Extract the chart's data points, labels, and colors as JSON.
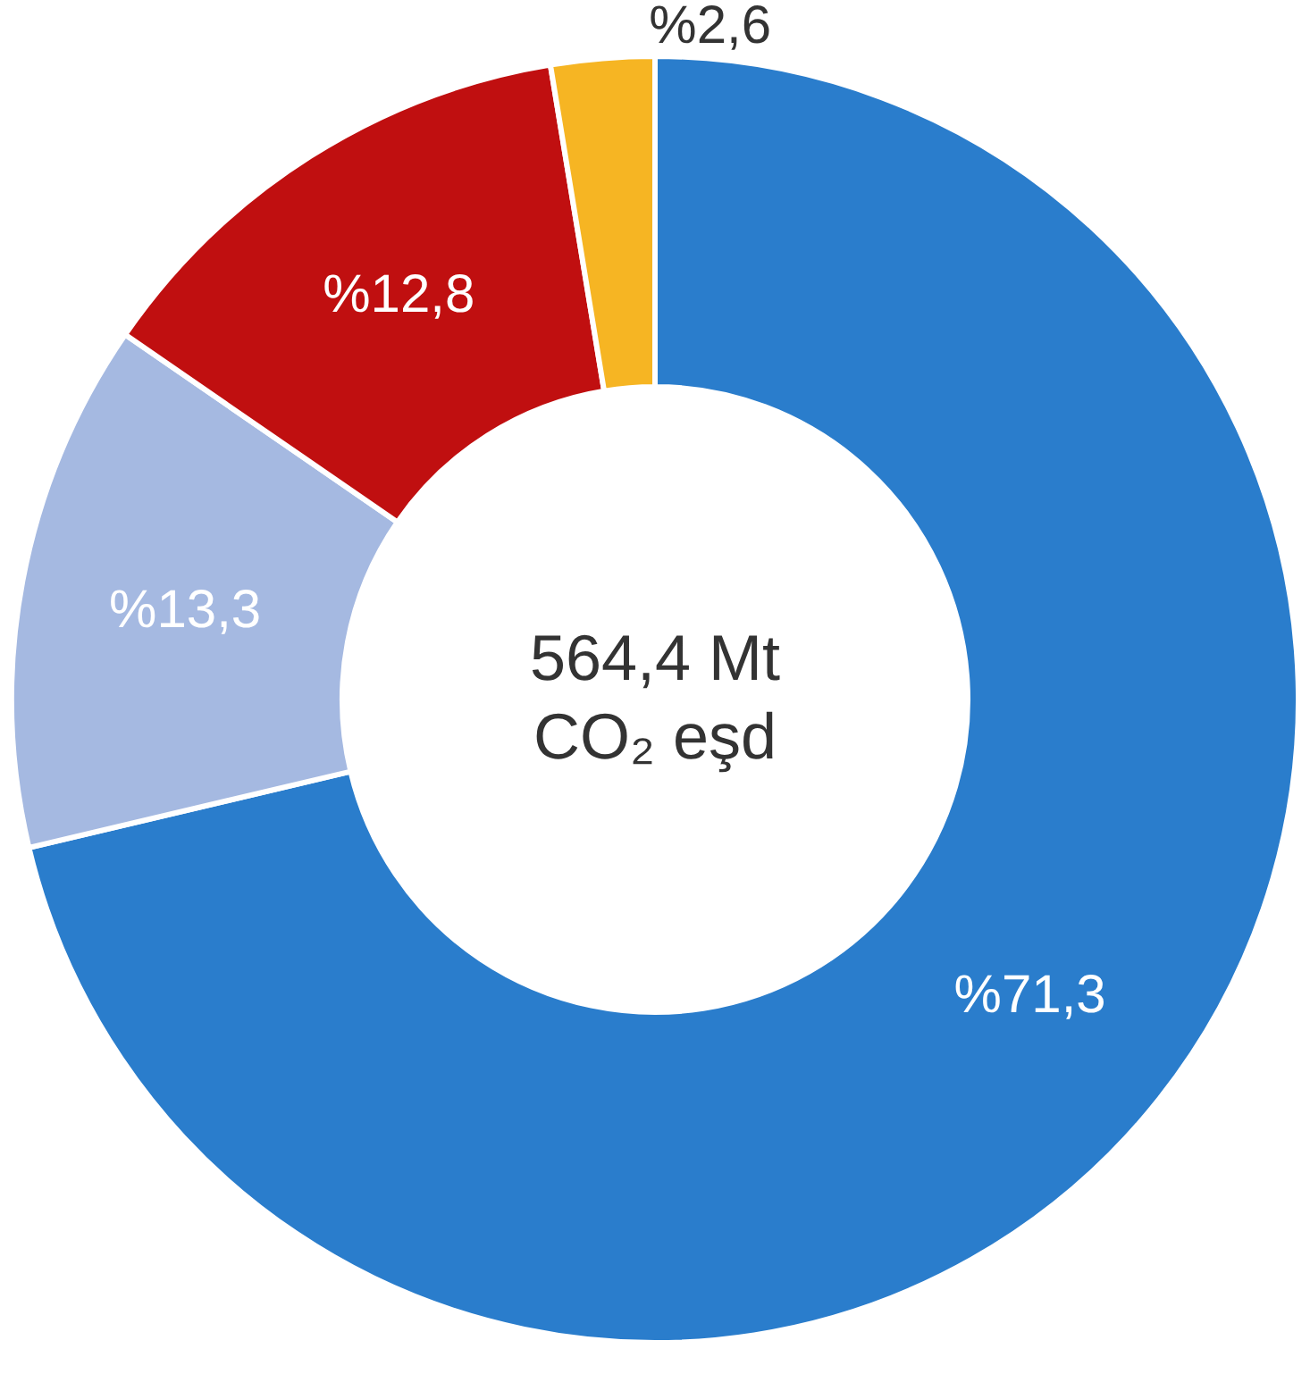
{
  "chart_data": {
    "type": "donut",
    "categories": [
      null,
      null,
      null,
      null
    ],
    "values": [
      71.3,
      13.3,
      12.8,
      2.6
    ],
    "colors": [
      "#2a7dcc",
      "#a5b9e1",
      "#c00f10",
      "#f6b523"
    ],
    "value_labels": [
      "%71,3",
      "%13,3",
      "%12,8",
      "%2,6"
    ],
    "annotations": [
      "564,4 Mt",
      "CO₂ eşd"
    ]
  }
}
